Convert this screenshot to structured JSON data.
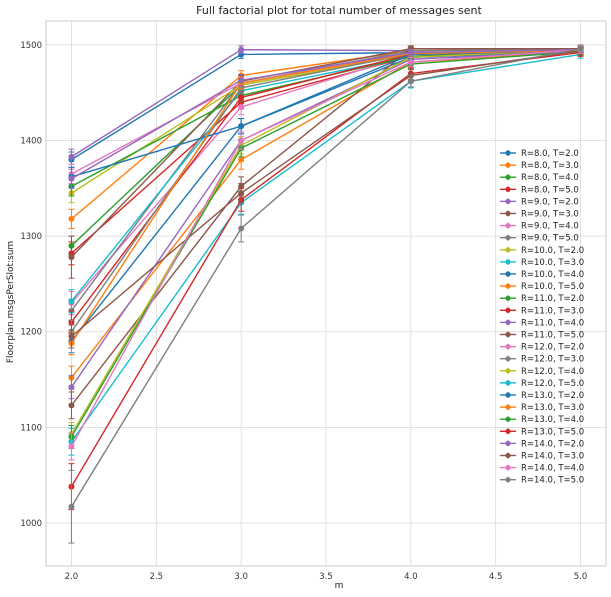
{
  "chart_data": {
    "type": "line",
    "title": "Full factorial plot for total number of messages sent",
    "xlabel": "m",
    "ylabel": "Floorplan.msgsPerSlot:sum",
    "x": [
      2.0,
      3.0,
      4.0,
      5.0
    ],
    "xlim": [
      1.85,
      5.15
    ],
    "ylim": [
      955,
      1525
    ],
    "xticks": [
      2.0,
      2.5,
      3.0,
      3.5,
      4.0,
      4.5,
      5.0
    ],
    "xtick_labels": [
      "2.0",
      "2.5",
      "3.0",
      "3.5",
      "4.0",
      "4.5",
      "5.0"
    ],
    "yticks": [
      1000,
      1100,
      1200,
      1300,
      1400,
      1500
    ],
    "ytick_labels": [
      "1000",
      "1100",
      "1200",
      "1300",
      "1400",
      "1500"
    ],
    "grid": true,
    "error_bars": true,
    "legend_position": "right",
    "series": [
      {
        "name": "R=8.0, T=2.0",
        "color": "#1f77b4",
        "values": [
          1380,
          1490,
          1492,
          1494
        ],
        "err": [
          8,
          4,
          3,
          3
        ]
      },
      {
        "name": "R=8.0, T=3.0",
        "color": "#ff7f0e",
        "values": [
          1318,
          1468,
          1494,
          1496
        ],
        "err": [
          10,
          5,
          3,
          3
        ]
      },
      {
        "name": "R=8.0, T=4.0",
        "color": "#2ca02c",
        "values": [
          1290,
          1458,
          1490,
          1495
        ],
        "err": [
          10,
          6,
          4,
          3
        ]
      },
      {
        "name": "R=8.0, T=5.0",
        "color": "#d62728",
        "values": [
          1282,
          1440,
          1488,
          1494
        ],
        "err": [
          12,
          7,
          4,
          3
        ]
      },
      {
        "name": "R=9.0, T=2.0",
        "color": "#9467bd",
        "values": [
          1383,
          1495,
          1494,
          1495
        ],
        "err": [
          8,
          4,
          3,
          3
        ]
      },
      {
        "name": "R=9.0, T=3.0",
        "color": "#8c564b",
        "values": [
          1278,
          1462,
          1496,
          1496
        ],
        "err": [
          22,
          6,
          3,
          3
        ]
      },
      {
        "name": "R=9.0, T=4.0",
        "color": "#e377c2",
        "values": [
          1230,
          1435,
          1490,
          1495
        ],
        "err": [
          12,
          8,
          4,
          3
        ]
      },
      {
        "name": "R=9.0, T=5.0",
        "color": "#7f7f7f",
        "values": [
          1222,
          1460,
          1494,
          1495
        ],
        "err": [
          12,
          6,
          3,
          3
        ]
      },
      {
        "name": "R=10.0, T=2.0",
        "color": "#bcbd22",
        "values": [
          1345,
          1458,
          1490,
          1494
        ],
        "err": [
          10,
          6,
          4,
          3
        ]
      },
      {
        "name": "R=10.0, T=3.0",
        "color": "#17becf",
        "values": [
          1232,
          1452,
          1488,
          1493
        ],
        "err": [
          12,
          6,
          4,
          3
        ]
      },
      {
        "name": "R=10.0, T=4.0",
        "color": "#1f77b4",
        "values": [
          1190,
          1415,
          1487,
          1493
        ],
        "err": [
          12,
          8,
          4,
          3
        ]
      },
      {
        "name": "R=10.0, T=5.0",
        "color": "#ff7f0e",
        "values": [
          1152,
          1380,
          1482,
          1493
        ],
        "err": [
          12,
          10,
          5,
          4
        ]
      },
      {
        "name": "R=11.0, T=2.0",
        "color": "#2ca02c",
        "values": [
          1352,
          1447,
          1488,
          1494
        ],
        "err": [
          10,
          6,
          4,
          3
        ]
      },
      {
        "name": "R=11.0, T=3.0",
        "color": "#d62728",
        "values": [
          1210,
          1445,
          1490,
          1494
        ],
        "err": [
          12,
          6,
          4,
          3
        ]
      },
      {
        "name": "R=11.0, T=4.0",
        "color": "#9467bd",
        "values": [
          1142,
          1400,
          1485,
          1493
        ],
        "err": [
          12,
          9,
          5,
          4
        ]
      },
      {
        "name": "R=11.0, T=5.0",
        "color": "#8c564b",
        "values": [
          1123,
          1352,
          1496,
          1496
        ],
        "err": [
          14,
          10,
          3,
          3
        ]
      },
      {
        "name": "R=12.0, T=2.0",
        "color": "#e377c2",
        "values": [
          1365,
          1460,
          1492,
          1495
        ],
        "err": [
          10,
          6,
          3,
          3
        ]
      },
      {
        "name": "R=12.0, T=3.0",
        "color": "#7f7f7f",
        "values": [
          1200,
          1455,
          1491,
          1495
        ],
        "err": [
          12,
          6,
          4,
          3
        ]
      },
      {
        "name": "R=12.0, T=4.0",
        "color": "#bcbd22",
        "values": [
          1093,
          1395,
          1487,
          1495
        ],
        "err": [
          12,
          9,
          5,
          4
        ]
      },
      {
        "name": "R=12.0, T=5.0",
        "color": "#17becf",
        "values": [
          1085,
          1335,
          1462,
          1490
        ],
        "err": [
          14,
          12,
          7,
          4
        ]
      },
      {
        "name": "R=13.0, T=2.0",
        "color": "#1f77b4",
        "values": [
          1362,
          1415,
          1490,
          1494
        ],
        "err": [
          10,
          8,
          4,
          3
        ]
      },
      {
        "name": "R=13.0, T=3.0",
        "color": "#ff7f0e",
        "values": [
          1188,
          1460,
          1491,
          1494
        ],
        "err": [
          12,
          6,
          4,
          3
        ]
      },
      {
        "name": "R=13.0, T=4.0",
        "color": "#2ca02c",
        "values": [
          1090,
          1392,
          1480,
          1493
        ],
        "err": [
          12,
          9,
          5,
          4
        ]
      },
      {
        "name": "R=13.0, T=5.0",
        "color": "#d62728",
        "values": [
          1038,
          1338,
          1470,
          1492
        ],
        "err": [
          24,
          12,
          6,
          4
        ]
      },
      {
        "name": "R=14.0, T=2.0",
        "color": "#9467bd",
        "values": [
          1360,
          1463,
          1492,
          1495
        ],
        "err": [
          10,
          6,
          3,
          3
        ]
      },
      {
        "name": "R=14.0, T=3.0",
        "color": "#8c564b",
        "values": [
          1195,
          1345,
          1468,
          1494
        ],
        "err": [
          12,
          10,
          6,
          4
        ]
      },
      {
        "name": "R=14.0, T=4.0",
        "color": "#e377c2",
        "values": [
          1080,
          1400,
          1482,
          1495
        ],
        "err": [
          14,
          9,
          5,
          4
        ]
      },
      {
        "name": "R=14.0, T=5.0",
        "color": "#7f7f7f",
        "values": [
          1017,
          1308,
          1462,
          1496
        ],
        "err": [
          38,
          14,
          6,
          4
        ]
      }
    ]
  }
}
